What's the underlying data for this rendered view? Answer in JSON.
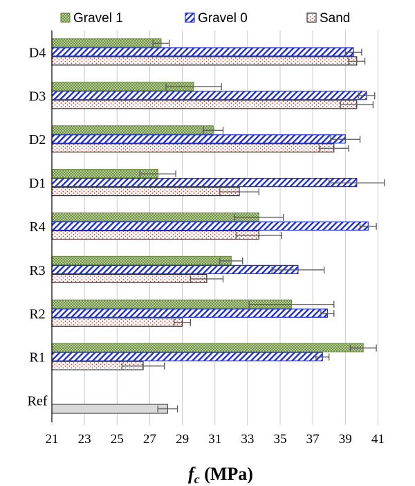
{
  "chart_data": {
    "type": "bar",
    "orientation": "horizontal",
    "categories": [
      "D4",
      "D3",
      "D2",
      "D1",
      "R4",
      "R3",
      "R2",
      "R1",
      "Ref"
    ],
    "series": [
      {
        "name": "Gravel 1",
        "color": "#7a9a4e",
        "values": [
          27.7,
          29.7,
          30.9,
          27.5,
          33.7,
          32.0,
          35.7,
          40.1,
          null
        ],
        "errors": [
          0.5,
          1.7,
          0.6,
          1.1,
          1.5,
          0.7,
          2.6,
          0.8,
          null
        ]
      },
      {
        "name": "Gravel 0",
        "color": "#1f2fd0",
        "values": [
          39.5,
          40.3,
          39.0,
          39.7,
          40.4,
          36.1,
          37.9,
          37.6,
          null
        ],
        "errors": [
          0.5,
          0.5,
          0.9,
          1.7,
          0.5,
          1.6,
          0.4,
          0.4,
          null
        ]
      },
      {
        "name": "Sand",
        "color": "#c0392b",
        "values": [
          39.7,
          39.7,
          38.3,
          32.5,
          33.7,
          30.5,
          29.0,
          26.6,
          null
        ],
        "errors": [
          0.5,
          1.0,
          0.9,
          1.2,
          1.4,
          1.0,
          0.5,
          1.3,
          null
        ]
      }
    ],
    "reference": {
      "category": "Ref",
      "value": 28.1,
      "error": 0.6,
      "color": "#d9d9d9"
    },
    "xlim": [
      21,
      42
    ],
    "xticks": [
      "21",
      "23",
      "25",
      "27",
      "29",
      "31",
      "33",
      "35",
      "37",
      "39",
      "41"
    ],
    "xlabel_main": "f",
    "xlabel_sub": "c",
    "xlabel_rest": " (MPa)",
    "grid": true,
    "legend_position": "top"
  }
}
